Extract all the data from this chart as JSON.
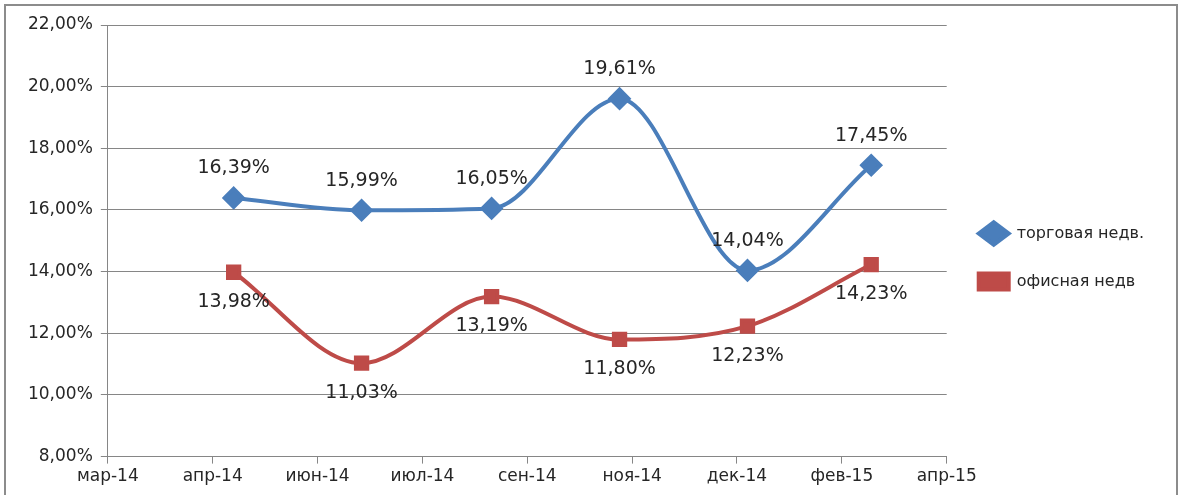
{
  "chart_data": {
    "type": "line",
    "x": [
      "2014-04-30",
      "2014-06-30",
      "2014-08-31",
      "2014-10-31",
      "2014-12-31",
      "2015-02-28"
    ],
    "series": [
      {
        "name": "торговая недв.",
        "color": "#4a7ebb",
        "marker": "diamond",
        "values": [
          16.39,
          15.99,
          16.05,
          19.61,
          14.04,
          17.45
        ],
        "value_labels": [
          "16,39%",
          "15,99%",
          "16,05%",
          "19,61%",
          "14,04%",
          "17,45%"
        ]
      },
      {
        "name": "офисная недв",
        "color": "#be4b48",
        "marker": "square",
        "values": [
          13.98,
          11.03,
          13.19,
          11.8,
          12.23,
          14.23
        ],
        "value_labels": [
          "13,98%",
          "11,03%",
          "13,19%",
          "11,80%",
          "12,23%",
          "14,23%"
        ]
      }
    ],
    "xlim": [
      "2014-03-01",
      "2015-04-05"
    ],
    "xticks": [
      {
        "value": "2014-03-01",
        "label": "мар-14"
      },
      {
        "value": "2014-04-20",
        "label": "апр-14"
      },
      {
        "value": "2014-06-09",
        "label": "июн-14"
      },
      {
        "value": "2014-07-29",
        "label": "июл-14"
      },
      {
        "value": "2014-09-17",
        "label": "сен-14"
      },
      {
        "value": "2014-11-06",
        "label": "ноя-14"
      },
      {
        "value": "2014-12-26",
        "label": "дек-14"
      },
      {
        "value": "2015-02-14",
        "label": "фев-15"
      },
      {
        "value": "2015-04-05",
        "label": "апр-15"
      }
    ],
    "ylim": [
      8,
      22
    ],
    "yticks": [
      {
        "value": 8,
        "label": "8,00%"
      },
      {
        "value": 10,
        "label": "10,00%"
      },
      {
        "value": 12,
        "label": "12,00%"
      },
      {
        "value": 14,
        "label": "14,00%"
      },
      {
        "value": 16,
        "label": "16,00%"
      },
      {
        "value": 18,
        "label": "18,00%"
      },
      {
        "value": 20,
        "label": "20,00%"
      },
      {
        "value": 22,
        "label": "22,00%"
      }
    ],
    "grid": "y",
    "legend": "right",
    "line_style": "solid"
  }
}
